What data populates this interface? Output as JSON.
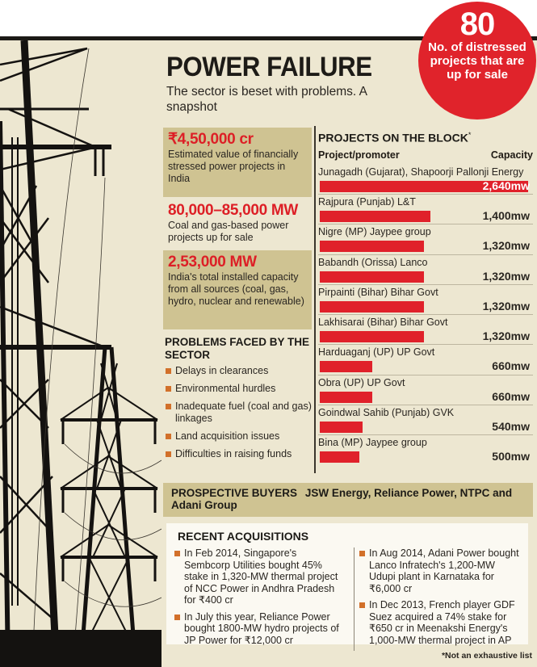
{
  "header": {
    "title": "POWER FAILURE",
    "subtitle": "The sector is beset with problems. A snapshot"
  },
  "badge": {
    "number": "80",
    "label": "No. of distressed projects that are up for sale",
    "color": "#e0232b"
  },
  "stats": [
    {
      "value": "₹4,50,000 cr",
      "desc": "Estimated value of financially stressed power projects in India"
    },
    {
      "value": "80,000–85,000 MW",
      "desc": "Coal and gas-based power projects up for sale"
    },
    {
      "value": "2,53,000 MW",
      "desc": "India's total installed capacity from all sources (coal, gas, hydro, nuclear and renewable)"
    }
  ],
  "problems": {
    "heading": "PROBLEMS FACED BY THE SECTOR",
    "items": [
      "Delays in clearances",
      "Environmental hurdles",
      "Inadequate fuel (coal and gas) linkages",
      "Land acquisition issues",
      "Difficulties in raising funds"
    ]
  },
  "projects": {
    "heading": "PROJECTS ON THE BLOCK",
    "asterisk": "*",
    "col_project": "Project/promoter",
    "col_capacity": "Capacity",
    "rows": [
      {
        "name": "Junagadh (Gujarat), Shapoorji Pallonji Energy",
        "label": "2,640mw"
      },
      {
        "name": "Rajpura (Punjab) L&T",
        "label": "1,400mw"
      },
      {
        "name": "Nigre (MP) Jaypee group",
        "label": "1,320mw"
      },
      {
        "name": "Babandh (Orissa) Lanco",
        "label": "1,320mw"
      },
      {
        "name": "Pirpainti (Bihar) Bihar Govt",
        "label": "1,320mw"
      },
      {
        "name": "Lakhisarai (Bihar) Bihar Govt",
        "label": "1,320mw"
      },
      {
        "name": "Harduaganj (UP) UP Govt",
        "label": "660mw"
      },
      {
        "name": "Obra (UP) UP Govt",
        "label": "660mw"
      },
      {
        "name": "Goindwal Sahib (Punjab) GVK",
        "label": "540mw"
      },
      {
        "name": "Bina (MP) Jaypee group",
        "label": "500mw"
      }
    ]
  },
  "buyers": {
    "label": "PROSPECTIVE BUYERS",
    "value": "JSW Energy, Reliance Power, NTPC and Adani Group"
  },
  "acquisitions": {
    "heading": "RECENT ACQUISITIONS",
    "left": [
      "In Feb 2014, Singapore's Sembcorp Utilities bought 45% stake in 1,320-MW thermal project of NCC Power in Andhra Pradesh for ₹400 cr",
      "In July this year, Reliance Power bought 1800-MW hydro projects of JP Power for ₹12,000 cr"
    ],
    "right": [
      "In Aug 2014, Adani Power bought Lanco Infratech's 1,200-MW Udupi plant in Karnataka for ₹6,000 cr",
      "In Dec 2013, French player GDF Suez acquired a 74% stake for ₹650 cr in Meenakshi Energy's 1,000-MW thermal project in AP"
    ]
  },
  "footnote": "*Not an exhaustive list",
  "colors": {
    "background": "#ede7d1",
    "tan_box": "#cfc392",
    "accent_red": "#e0212a",
    "bullet_orange": "#d2702a"
  },
  "chart_data": {
    "type": "bar",
    "orientation": "horizontal",
    "title": "PROJECTS ON THE BLOCK*",
    "xlabel": "Capacity",
    "ylabel": "Project/promoter",
    "categories": [
      "Junagadh (Gujarat), Shapoorji Pallonji Energy",
      "Rajpura (Punjab) L&T",
      "Nigre (MP) Jaypee group",
      "Babandh (Orissa) Lanco",
      "Pirpainti (Bihar) Bihar Govt",
      "Lakhisarai (Bihar) Bihar Govt",
      "Harduaganj (UP) UP Govt",
      "Obra (UP) UP Govt",
      "Goindwal Sahib (Punjab) GVK",
      "Bina (MP) Jaypee group"
    ],
    "values": [
      2640,
      1400,
      1320,
      1320,
      1320,
      1320,
      660,
      660,
      540,
      500
    ],
    "unit": "mw",
    "xlim": [
      0,
      2640
    ],
    "grid": false,
    "legend": null,
    "bar_color": "#e0212a"
  }
}
